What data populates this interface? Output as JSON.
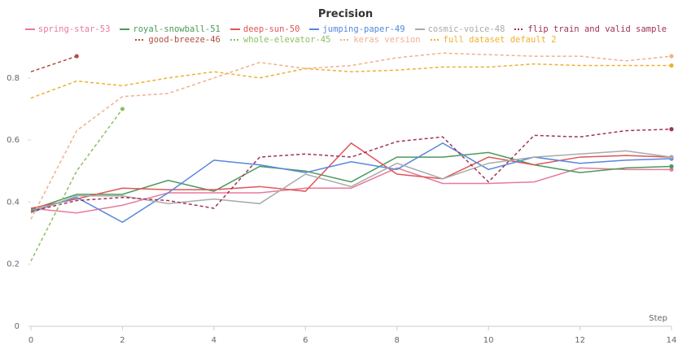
{
  "chart_data": {
    "type": "line",
    "title": "Precision",
    "xlabel": "Step",
    "x": [
      0,
      1,
      2,
      3,
      4,
      5,
      6,
      7,
      8,
      9,
      10,
      11,
      12,
      13,
      14
    ],
    "xlim": [
      0,
      14
    ],
    "xticks": [
      0,
      2,
      4,
      6,
      8,
      10,
      12,
      14
    ],
    "ylim": [
      0,
      0.92
    ],
    "yticks": [
      0,
      0.2,
      0.4,
      0.6,
      0.8
    ],
    "grid": false,
    "series": [
      {
        "name": "spring-star-53",
        "color": "#e87a9a",
        "dashed": false,
        "values": [
          0.38,
          0.365,
          0.39,
          0.43,
          0.43,
          0.43,
          0.445,
          0.445,
          0.51,
          0.46,
          0.46,
          0.465,
          0.51,
          0.505,
          0.505
        ]
      },
      {
        "name": "royal-snowball-51",
        "color": "#4a9a5a",
        "dashed": false,
        "values": [
          0.375,
          0.425,
          0.425,
          0.47,
          0.435,
          0.515,
          0.5,
          0.465,
          0.545,
          0.545,
          0.56,
          0.52,
          0.495,
          0.51,
          0.515
        ]
      },
      {
        "name": "deep-sun-50",
        "color": "#e05555",
        "dashed": false,
        "values": [
          0.38,
          0.41,
          0.445,
          0.44,
          0.44,
          0.45,
          0.435,
          0.59,
          0.49,
          0.475,
          0.545,
          0.52,
          0.545,
          0.55,
          0.545
        ]
      },
      {
        "name": "jumping-paper-49",
        "color": "#5588dd",
        "dashed": false,
        "values": [
          0.37,
          0.415,
          0.335,
          0.43,
          0.535,
          0.52,
          0.495,
          0.53,
          0.505,
          0.59,
          0.505,
          0.545,
          0.525,
          0.535,
          0.54
        ]
      },
      {
        "name": "cosmic-voice-48",
        "color": "#aaaaaa",
        "dashed": false,
        "values": [
          0.365,
          0.42,
          0.42,
          0.395,
          0.41,
          0.395,
          0.49,
          0.45,
          0.525,
          0.475,
          0.525,
          0.545,
          0.555,
          0.565,
          0.545
        ]
      },
      {
        "name": "flip train and valid sample",
        "color": "#a0325a",
        "dashed": true,
        "values": [
          0.37,
          0.405,
          0.415,
          0.405,
          0.38,
          0.545,
          0.555,
          0.545,
          0.595,
          0.61,
          0.465,
          0.615,
          0.61,
          0.63,
          0.635
        ]
      },
      {
        "name": "good-breeze-46",
        "color": "#b05040",
        "dashed": true,
        "values": [
          0.82,
          0.87,
          null,
          null,
          null,
          null,
          null,
          null,
          null,
          null,
          null,
          null,
          null,
          null,
          null
        ]
      },
      {
        "name": "whole-elevator-45",
        "color": "#8cc060",
        "dashed": true,
        "values": [
          0.21,
          0.5,
          0.7,
          null,
          null,
          null,
          null,
          null,
          null,
          null,
          null,
          null,
          null,
          null,
          null
        ]
      },
      {
        "name": "keras version",
        "color": "#f0b090",
        "dashed": true,
        "values": [
          0.345,
          0.63,
          0.74,
          0.75,
          0.8,
          0.85,
          0.83,
          0.84,
          0.865,
          0.88,
          0.875,
          0.87,
          0.87,
          0.855,
          0.87
        ]
      },
      {
        "name": "full dataset default 2",
        "color": "#f0b030",
        "dashed": true,
        "values": [
          0.735,
          0.79,
          0.775,
          0.8,
          0.82,
          0.8,
          0.83,
          0.82,
          0.825,
          0.835,
          0.835,
          0.845,
          0.84,
          0.84,
          0.84
        ]
      }
    ]
  }
}
